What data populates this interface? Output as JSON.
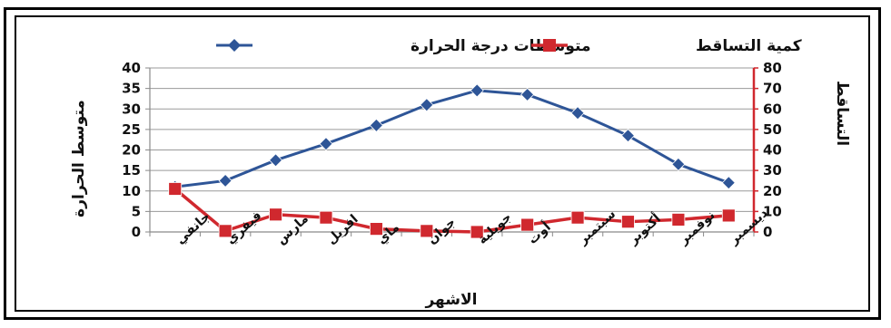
{
  "chart_data": {
    "type": "line",
    "categories": [
      "جانفي",
      "فيفري",
      "مارس",
      "افريل",
      "ماي",
      "جوان",
      "جويلية",
      "أوت",
      "سبتمبر",
      "أكتوبر",
      "نوفمبر",
      "ديسمبر"
    ],
    "series": [
      {
        "name": "متوسطات درجة الحرارة",
        "axis": "left",
        "color": "#2E5597",
        "marker": "diamond",
        "values": [
          11,
          12.5,
          17.5,
          21.5,
          26,
          31,
          34.5,
          33.5,
          29,
          23.5,
          16.5,
          12
        ]
      },
      {
        "name": "كمية التساقط",
        "axis": "right",
        "color": "#D0282E",
        "marker": "square",
        "values": [
          21,
          0.5,
          8.5,
          7,
          1.5,
          0.5,
          0,
          3.5,
          7,
          5,
          6,
          8
        ]
      }
    ],
    "xlabel": "الاشهر",
    "ylabel_left": "متوسط الحرارة",
    "ylabel_right": "التساقط",
    "ylim_left": [
      0,
      40
    ],
    "ylim_right": [
      0,
      80
    ],
    "yticks_left": [
      "0",
      "5",
      "10",
      "15",
      "20",
      "25",
      "30",
      "35",
      "40"
    ],
    "yticks_right": [
      "0",
      "10",
      "20",
      "30",
      "40",
      "50",
      "60",
      "70",
      "80"
    ],
    "grid": true,
    "legend_position": "top"
  }
}
